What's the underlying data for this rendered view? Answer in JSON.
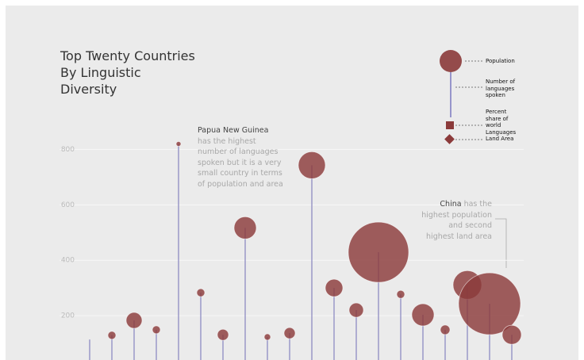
{
  "chart_data": {
    "type": "lollipop-bubble",
    "title": "Top Twenty Countries By Linguistic Diversity",
    "categories": [
      null,
      null,
      null,
      null,
      null,
      null,
      null,
      null,
      null,
      null,
      null,
      null,
      null,
      null,
      null,
      null,
      null,
      null,
      null,
      null
    ],
    "values": [
      114,
      129,
      183,
      149,
      820,
      283,
      131,
      517,
      123,
      137,
      743,
      300,
      220,
      429,
      277,
      203,
      149,
      311,
      243,
      131
    ],
    "sizes": [
      0,
      5,
      10,
      5,
      3,
      5,
      7,
      14,
      4,
      7,
      17,
      11,
      9,
      38,
      5,
      14,
      6,
      18,
      39,
      12
    ],
    "color": "#8b3a3a",
    "stem_color": "#9a98c8",
    "ylim": [
      40,
      910
    ],
    "yticks": [
      200,
      400,
      600,
      800
    ],
    "grid": true,
    "legend": {
      "population": "Population",
      "languages": "Number of languages spoken",
      "share": "Percent share of world Languages",
      "area": "Land Area"
    },
    "annotations": [
      {
        "bold": "Papua New Guinea",
        "text": "has the highest number of languages spoken but it is a very small country in terms of population and area"
      },
      {
        "bold": "China",
        "text": "has the highest population and second highest land area"
      }
    ]
  }
}
